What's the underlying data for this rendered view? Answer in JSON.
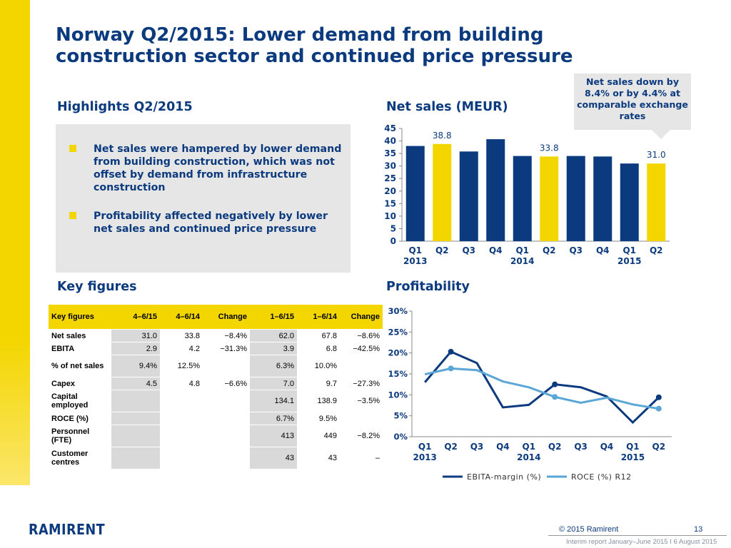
{
  "title_line1": "Norway Q2/2015: Lower demand from building",
  "title_line2": "construction sector and continued price pressure",
  "highlights": {
    "heading": "Highlights Q2/2015",
    "bullets": [
      "Net sales were hampered by lower demand from building construction, which was not offset by demand from infrastructure construction",
      "Profitability affected negatively by lower net sales and continued price pressure"
    ]
  },
  "net_sales_heading": "Net sales (MEUR)",
  "callout": "Net sales down by 8.4% or by 4.4% at comparable exchange rates",
  "key_figures": {
    "heading": "Key figures",
    "columns": [
      "Key figures",
      "4–6/15",
      "4–6/14",
      "Change",
      "1–6/15",
      "1–6/14",
      "Change"
    ],
    "rows": [
      [
        "Net sales",
        "31.0",
        "33.8",
        "−8.4%",
        "62.0",
        "67.8",
        "−8.6%"
      ],
      [
        "EBITA",
        "2.9",
        "4.2",
        "−31.3%",
        "3.9",
        "6.8",
        "−42.5%"
      ],
      [
        "% of net sales",
        "9.4%",
        "12.5%",
        "",
        "6.3%",
        "10.0%",
        ""
      ],
      [
        "Capex",
        "4.5",
        "4.8",
        "−6.6%",
        "7.0",
        "9.7",
        "−27.3%"
      ],
      [
        "Capital employed",
        "",
        "",
        "",
        "134.1",
        "138.9",
        "−3.5%"
      ],
      [
        "ROCE (%)",
        "",
        "",
        "",
        "6.7%",
        "9.5%",
        ""
      ],
      [
        "Personnel (FTE)",
        "",
        "",
        "",
        "413",
        "449",
        "−8.2%"
      ],
      [
        "Customer centres",
        "",
        "",
        "",
        "43",
        "43",
        "–"
      ]
    ]
  },
  "profitability_heading": "Profitability",
  "colors": {
    "navy": "#0b3a7e",
    "yellow": "#f3d600",
    "light_blue": "#5aa6d6",
    "grey": "#e6e6e6"
  },
  "chart_data": [
    {
      "type": "bar",
      "title": "Net sales (MEUR)",
      "categories": [
        "Q1",
        "Q2",
        "Q3",
        "Q4",
        "Q1",
        "Q2",
        "Q3",
        "Q4",
        "Q1",
        "Q2"
      ],
      "year_labels": [
        "2013",
        "",
        "",
        "",
        "2014",
        "",
        "",
        "",
        "2015",
        ""
      ],
      "values": [
        38.0,
        38.8,
        35.8,
        40.7,
        34.0,
        33.8,
        34.0,
        33.8,
        31.0,
        31.0
      ],
      "highlight_indices": [
        1,
        5,
        9
      ],
      "data_labels": {
        "1": "38.8",
        "5": "33.8",
        "9": "31.0"
      },
      "ylim": [
        0,
        45
      ],
      "yticks": [
        "0",
        "5",
        "10",
        "15",
        "20",
        "25",
        "30",
        "35",
        "40",
        "45"
      ],
      "grid": false
    },
    {
      "type": "line",
      "title": "Profitability",
      "categories": [
        "Q1",
        "Q2",
        "Q3",
        "Q4",
        "Q1",
        "Q2",
        "Q3",
        "Q4",
        "Q1",
        "Q2"
      ],
      "year_labels": [
        "2013",
        "",
        "",
        "",
        "2014",
        "",
        "",
        "",
        "2015",
        ""
      ],
      "series": [
        {
          "name": "EBITA-margin (%)",
          "values": [
            13.0,
            20.3,
            17.6,
            7.0,
            7.6,
            12.5,
            11.8,
            9.6,
            3.4,
            9.4
          ]
        },
        {
          "name": "ROCE (%) R12",
          "values": [
            14.9,
            16.3,
            15.9,
            13.2,
            11.8,
            9.5,
            8.1,
            9.3,
            7.7,
            6.7
          ]
        }
      ],
      "marked_indices": [
        1,
        5,
        9
      ],
      "ylim": [
        0,
        30
      ],
      "yticks": [
        "0%",
        "5%",
        "10%",
        "15%",
        "20%",
        "25%",
        "30%"
      ],
      "legend": "bottom",
      "grid": false
    }
  ],
  "footer": {
    "logo": "RAMIRENT",
    "copyright": "© 2015 Ramirent",
    "page": "13",
    "report": "Interim report January–June 2015  I 6 August 2015"
  }
}
